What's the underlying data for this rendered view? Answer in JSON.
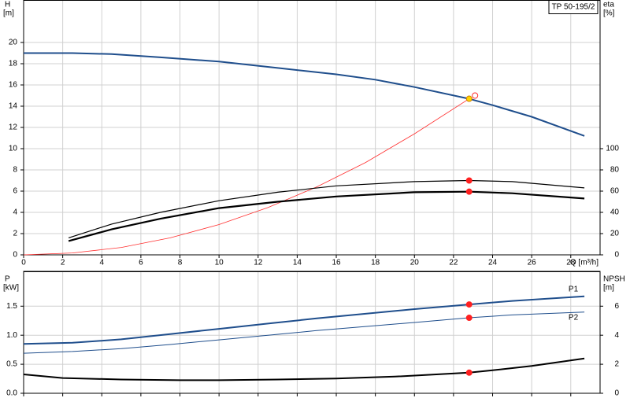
{
  "chart_data": [
    {
      "type": "line",
      "title": "TP 50-195/2",
      "y_label": "H",
      "y_unit": "[m]",
      "y2_label": "eta",
      "y2_unit": "[%]",
      "x_label": "Q [m³/h]",
      "xlim": [
        0,
        29.5
      ],
      "xticks": [
        0,
        2,
        4,
        6,
        8,
        10,
        12,
        14,
        16,
        18,
        20,
        22,
        24,
        26,
        28
      ],
      "show_xtick_labels": true,
      "ylim": [
        0,
        24
      ],
      "yticks": [
        0,
        2,
        4,
        6,
        8,
        10,
        12,
        14,
        16,
        18,
        20
      ],
      "y2lim": [
        0,
        240
      ],
      "y2ticks": [
        0,
        20,
        40,
        60,
        80,
        100
      ],
      "grid": true,
      "series": [
        {
          "color": "#1f4e8c",
          "width": 2,
          "x": [
            0,
            2.5,
            4.5,
            7,
            10,
            13,
            16,
            18,
            20,
            22.8,
            24,
            26,
            28.7
          ],
          "values": [
            19,
            19,
            18.9,
            18.6,
            18.2,
            17.6,
            17,
            16.5,
            15.8,
            14.7,
            14.1,
            13,
            11.2
          ]
        },
        {
          "color": "#ff3030",
          "width": 0.8,
          "x": [
            0,
            2.5,
            5,
            7.5,
            10,
            12.5,
            15,
            17.5,
            20,
            22.8
          ],
          "values": [
            0,
            0.18,
            0.7,
            1.6,
            2.85,
            4.45,
            6.4,
            8.7,
            11.4,
            14.7
          ]
        },
        {
          "color": "#000000",
          "width": 1.2,
          "axis": "y2",
          "x": [
            2.3,
            4.5,
            7,
            10,
            13,
            16,
            20,
            22.8,
            25,
            28.7
          ],
          "values": [
            16,
            29,
            40,
            51,
            59,
            65,
            69,
            70,
            69,
            63
          ]
        },
        {
          "color": "#000000",
          "width": 2.2,
          "axis": "y2",
          "x": [
            2.3,
            4.5,
            7,
            10,
            13,
            16,
            20,
            22.8,
            25,
            28.7
          ],
          "values": [
            13,
            24,
            34,
            44,
            50,
            55,
            59,
            59.5,
            58,
            53
          ]
        }
      ],
      "points": [
        {
          "x": 22.8,
          "y": 70,
          "axis": "y2",
          "color": "#ff2020",
          "filled": true
        },
        {
          "x": 22.8,
          "y": 59.5,
          "axis": "y2",
          "color": "#ff2020",
          "filled": true
        },
        {
          "x": 23.1,
          "y": 15,
          "color": "#ff3030",
          "filled": false
        },
        {
          "x": 22.8,
          "y": 14.7,
          "color": "#ffd400",
          "filled": true
        }
      ]
    },
    {
      "type": "line",
      "y_label": "P",
      "y_unit": "[kW]",
      "y2_label": "NPSH",
      "y2_unit": "[m]",
      "xlim": [
        0,
        29.5
      ],
      "xticks": [
        0,
        2,
        4,
        6,
        8,
        10,
        12,
        14,
        16,
        18,
        20,
        22,
        24,
        26,
        28
      ],
      "show_xtick_labels": false,
      "ylim": [
        0,
        2.1
      ],
      "yticks": [
        {
          "value": 0,
          "label": "0.0"
        },
        0.5,
        {
          "value": 1,
          "label": "1.0"
        },
        1.5
      ],
      "y2lim": [
        0,
        8.4
      ],
      "y2ticks": [
        0,
        2,
        4,
        6
      ],
      "grid": true,
      "series": [
        {
          "name": "P1",
          "color": "#1f4e8c",
          "width": 2,
          "x": [
            0,
            2.5,
            5,
            7.5,
            10,
            12.5,
            15,
            17.5,
            20,
            22.8,
            25,
            28.7
          ],
          "values": [
            0.85,
            0.87,
            0.93,
            1.02,
            1.11,
            1.2,
            1.29,
            1.37,
            1.45,
            1.53,
            1.59,
            1.67
          ]
        },
        {
          "name": "P2",
          "color": "#1f4e8c",
          "width": 1,
          "x": [
            0,
            2.5,
            5,
            7.5,
            10,
            12.5,
            15,
            17.5,
            20,
            22.8,
            25,
            28.7
          ],
          "values": [
            0.69,
            0.72,
            0.77,
            0.84,
            0.92,
            1.0,
            1.08,
            1.15,
            1.22,
            1.3,
            1.35,
            1.4
          ]
        },
        {
          "color": "#000000",
          "width": 2,
          "axis": "y2",
          "x": [
            0,
            2,
            5,
            8,
            10,
            13,
            16,
            19,
            22.8,
            24,
            26,
            28.7
          ],
          "values": [
            1.3,
            1.05,
            0.95,
            0.9,
            0.9,
            0.95,
            1.02,
            1.15,
            1.42,
            1.58,
            1.88,
            2.4
          ]
        }
      ],
      "points": [
        {
          "x": 22.8,
          "y": 1.53,
          "color": "#ff2020",
          "filled": true
        },
        {
          "x": 22.8,
          "y": 1.3,
          "color": "#ff2020",
          "filled": true
        },
        {
          "x": 22.8,
          "y": 1.42,
          "axis": "y2",
          "color": "#ff2020",
          "filled": true
        }
      ]
    }
  ]
}
